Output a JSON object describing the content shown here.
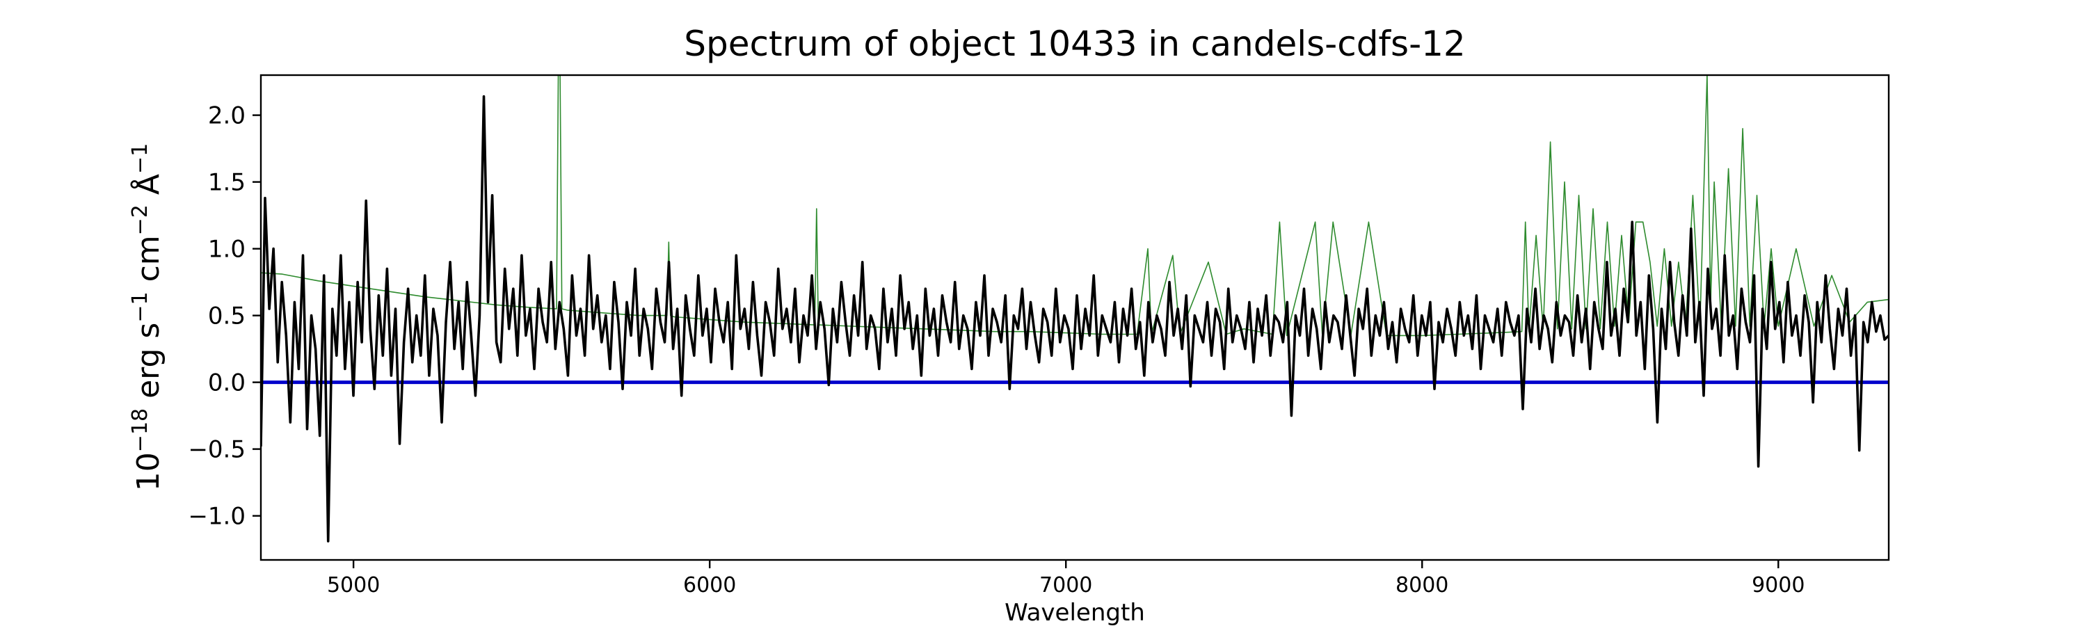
{
  "chart_data": {
    "type": "line",
    "title": "Spectrum of object 10433 in candels-cdfs-12",
    "xlabel": "Wavelength",
    "ylabel": {
      "parts": [
        {
          "text": "10",
          "sup": false
        },
        {
          "text": "−18",
          "sup": true
        },
        {
          "text": " erg s",
          "sup": false
        },
        {
          "text": "−1",
          "sup": true
        },
        {
          "text": " cm",
          "sup": false
        },
        {
          "text": "−2",
          "sup": true
        },
        {
          "text": " Å",
          "sup": false
        },
        {
          "text": "−1",
          "sup": true
        }
      ]
    },
    "xlim": [
      4740,
      9310
    ],
    "ylim": [
      -1.33,
      2.3
    ],
    "xticks": [
      5000,
      6000,
      7000,
      8000,
      9000
    ],
    "xtick_labels": [
      "5000",
      "6000",
      "7000",
      "8000",
      "9000"
    ],
    "yticks": [
      -1.0,
      -0.5,
      0.0,
      0.5,
      1.0,
      1.5,
      2.0
    ],
    "ytick_labels": [
      "−1.0",
      "−0.5",
      "0.0",
      "0.5",
      "1.0",
      "1.5",
      "2.0"
    ],
    "grid": false,
    "series": [
      {
        "role": "zero-line",
        "color": "#0000cc",
        "x": [
          4740,
          9310
        ],
        "y": [
          0.0,
          0.0
        ]
      },
      {
        "role": "model",
        "color": "#2e8b2e",
        "x": [
          4740,
          4800,
          4900,
          5000,
          5100,
          5200,
          5300,
          5400,
          5500,
          5570,
          5575,
          5580,
          5585,
          5600,
          5700,
          5800,
          5880,
          5885,
          5890,
          5900,
          6000,
          6100,
          6200,
          6295,
          6300,
          6305,
          6400,
          6500,
          6600,
          6700,
          6800,
          6900,
          7000,
          7100,
          7200,
          7230,
          7240,
          7300,
          7320,
          7400,
          7450,
          7500,
          7580,
          7600,
          7620,
          7700,
          7720,
          7750,
          7800,
          7850,
          7900,
          8000,
          8100,
          8200,
          8280,
          8290,
          8300,
          8320,
          8340,
          8360,
          8380,
          8400,
          8420,
          8440,
          8460,
          8480,
          8500,
          8520,
          8540,
          8560,
          8580,
          8600,
          8620,
          8640,
          8660,
          8680,
          8700,
          8720,
          8740,
          8760,
          8780,
          8800,
          8810,
          8820,
          8840,
          8860,
          8880,
          8900,
          8920,
          8940,
          8960,
          8980,
          9000,
          9050,
          9100,
          9150,
          9200,
          9250,
          9310
        ],
        "y": [
          0.82,
          0.81,
          0.76,
          0.72,
          0.68,
          0.64,
          0.61,
          0.58,
          0.56,
          0.55,
          2.3,
          2.3,
          0.55,
          0.54,
          0.52,
          0.5,
          0.5,
          1.05,
          0.5,
          0.49,
          0.47,
          0.45,
          0.44,
          0.43,
          1.3,
          0.43,
          0.42,
          0.41,
          0.4,
          0.39,
          0.38,
          0.38,
          0.37,
          0.36,
          0.36,
          1.0,
          0.36,
          0.95,
          0.36,
          0.9,
          0.36,
          0.4,
          0.36,
          1.2,
          0.35,
          1.2,
          0.35,
          1.2,
          0.35,
          1.2,
          0.35,
          0.35,
          0.36,
          0.37,
          0.38,
          1.2,
          0.38,
          1.1,
          0.4,
          1.8,
          0.4,
          1.5,
          0.4,
          1.4,
          0.4,
          1.3,
          0.4,
          1.2,
          0.42,
          1.1,
          0.45,
          1.2,
          1.2,
          0.9,
          0.42,
          1.0,
          0.42,
          0.9,
          0.42,
          1.4,
          0.42,
          2.3,
          0.6,
          1.5,
          0.42,
          1.6,
          0.42,
          1.9,
          0.42,
          1.4,
          0.42,
          1.0,
          0.42,
          1.0,
          0.42,
          0.8,
          0.45,
          0.6,
          0.62
        ]
      },
      {
        "role": "data",
        "color": "#000000",
        "x_start": 4740,
        "x_end": 9310,
        "y": [
          -0.48,
          1.38,
          0.55,
          1.0,
          0.15,
          0.75,
          0.35,
          -0.3,
          0.6,
          0.1,
          0.95,
          -0.35,
          0.5,
          0.25,
          -0.4,
          0.8,
          -1.19,
          0.55,
          0.2,
          0.95,
          0.1,
          0.6,
          -0.1,
          0.75,
          0.3,
          1.36,
          0.4,
          -0.05,
          0.65,
          0.2,
          0.85,
          0.05,
          0.55,
          -0.46,
          0.3,
          0.7,
          0.15,
          0.5,
          0.2,
          0.8,
          0.05,
          0.55,
          0.35,
          -0.3,
          0.45,
          0.9,
          0.25,
          0.6,
          0.1,
          0.75,
          0.35,
          -0.1,
          0.5,
          2.14,
          0.6,
          1.4,
          0.3,
          0.15,
          0.85,
          0.4,
          0.7,
          0.2,
          0.95,
          0.35,
          0.55,
          0.1,
          0.7,
          0.45,
          0.3,
          0.9,
          0.25,
          0.6,
          0.4,
          0.05,
          0.8,
          0.35,
          0.55,
          0.2,
          0.95,
          0.4,
          0.65,
          0.3,
          0.5,
          0.1,
          0.75,
          0.45,
          -0.05,
          0.6,
          0.35,
          0.85,
          0.2,
          0.55,
          0.4,
          0.1,
          0.7,
          0.45,
          0.3,
          0.9,
          0.25,
          0.55,
          -0.1,
          0.65,
          0.4,
          0.2,
          0.8,
          0.35,
          0.55,
          0.15,
          0.7,
          0.45,
          0.3,
          0.6,
          0.1,
          0.95,
          0.4,
          0.55,
          0.25,
          0.75,
          0.35,
          0.05,
          0.6,
          0.45,
          0.2,
          0.85,
          0.4,
          0.55,
          0.3,
          0.7,
          0.15,
          0.5,
          0.35,
          0.8,
          0.25,
          0.6,
          0.4,
          -0.02,
          0.55,
          0.3,
          0.75,
          0.45,
          0.2,
          0.65,
          0.35,
          0.9,
          0.25,
          0.5,
          0.4,
          0.1,
          0.7,
          0.3,
          0.55,
          0.2,
          0.8,
          0.4,
          0.6,
          0.25,
          0.5,
          0.05,
          0.7,
          0.35,
          0.55,
          0.2,
          0.65,
          0.45,
          0.3,
          0.75,
          0.25,
          0.5,
          0.4,
          0.1,
          0.6,
          0.35,
          0.8,
          0.2,
          0.55,
          0.45,
          0.3,
          0.65,
          -0.05,
          0.5,
          0.4,
          0.7,
          0.25,
          0.6,
          0.35,
          0.15,
          0.55,
          0.45,
          0.2,
          0.7,
          0.3,
          0.5,
          0.4,
          0.1,
          0.65,
          0.25,
          0.55,
          0.35,
          0.8,
          0.2,
          0.5,
          0.4,
          0.3,
          0.6,
          0.15,
          0.55,
          0.35,
          0.7,
          0.25,
          0.45,
          0.05,
          0.6,
          0.3,
          0.5,
          0.4,
          0.2,
          0.75,
          0.35,
          0.55,
          0.25,
          0.65,
          -0.03,
          0.5,
          0.4,
          0.3,
          0.6,
          0.2,
          0.55,
          0.45,
          0.1,
          0.7,
          0.3,
          0.5,
          0.4,
          0.25,
          0.6,
          0.15,
          0.55,
          0.35,
          0.65,
          0.2,
          0.5,
          0.45,
          0.3,
          0.6,
          -0.25,
          0.5,
          0.35,
          0.7,
          0.2,
          0.55,
          0.4,
          0.1,
          0.6,
          0.3,
          0.5,
          0.45,
          0.25,
          0.65,
          0.35,
          0.05,
          0.55,
          0.4,
          0.7,
          0.2,
          0.5,
          0.35,
          0.6,
          0.25,
          0.45,
          0.15,
          0.55,
          0.4,
          0.3,
          0.65,
          0.2,
          0.5,
          0.35,
          0.6,
          -0.05,
          0.45,
          0.3,
          0.55,
          0.4,
          0.2,
          0.6,
          0.35,
          0.5,
          0.25,
          0.65,
          0.1,
          0.5,
          0.4,
          0.3,
          0.55,
          0.2,
          0.6,
          0.45,
          0.35,
          0.5,
          -0.2,
          0.55,
          0.3,
          0.7,
          0.25,
          0.5,
          0.4,
          0.15,
          0.6,
          0.35,
          0.5,
          0.45,
          0.2,
          0.65,
          0.3,
          0.55,
          0.1,
          0.6,
          0.4,
          0.25,
          0.9,
          0.35,
          0.55,
          0.2,
          0.7,
          0.45,
          1.2,
          0.35,
          0.6,
          0.1,
          0.8,
          0.4,
          -0.3,
          0.55,
          0.25,
          0.9,
          0.45,
          0.2,
          0.65,
          0.35,
          1.15,
          0.3,
          0.6,
          -0.1,
          0.85,
          0.4,
          0.55,
          0.2,
          0.95,
          0.35,
          0.5,
          0.1,
          0.7,
          0.45,
          0.3,
          0.8,
          -0.63,
          0.55,
          0.25,
          0.9,
          0.4,
          0.6,
          0.15,
          0.75,
          0.35,
          0.5,
          0.2,
          0.65,
          0.45,
          -0.15,
          0.6,
          0.3,
          0.8,
          0.4,
          0.1,
          0.55,
          0.35,
          0.7,
          0.2,
          0.5,
          -0.51,
          0.45,
          0.3,
          0.6,
          0.38,
          0.5,
          0.32,
          0.35
        ]
      }
    ]
  }
}
